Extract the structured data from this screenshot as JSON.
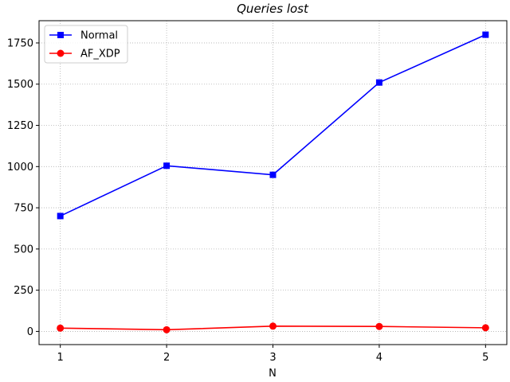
{
  "chart_data": {
    "type": "line",
    "title": "Queries lost",
    "xlabel": "N",
    "ylabel": "",
    "x": [
      1,
      2,
      3,
      4,
      5
    ],
    "xlim": [
      0.8,
      5.2
    ],
    "ylim": [
      -80,
      1885
    ],
    "xticks": [
      "1",
      "2",
      "3",
      "4",
      "5"
    ],
    "yticks": [
      0,
      250,
      500,
      750,
      1000,
      1250,
      1500,
      1750
    ],
    "ytick_labels": [
      "0",
      "250",
      "500",
      "750",
      "1000",
      "1250",
      "1500",
      "1750"
    ],
    "grid": true,
    "legend_position": "top-left",
    "series": [
      {
        "name": "Normal",
        "values": [
          700,
          1005,
          950,
          1510,
          1800
        ],
        "color": "#0000ff",
        "marker": "square"
      },
      {
        "name": "AF_XDP",
        "values": [
          20,
          10,
          32,
          30,
          22
        ],
        "color": "#ff0000",
        "marker": "circle"
      }
    ]
  }
}
